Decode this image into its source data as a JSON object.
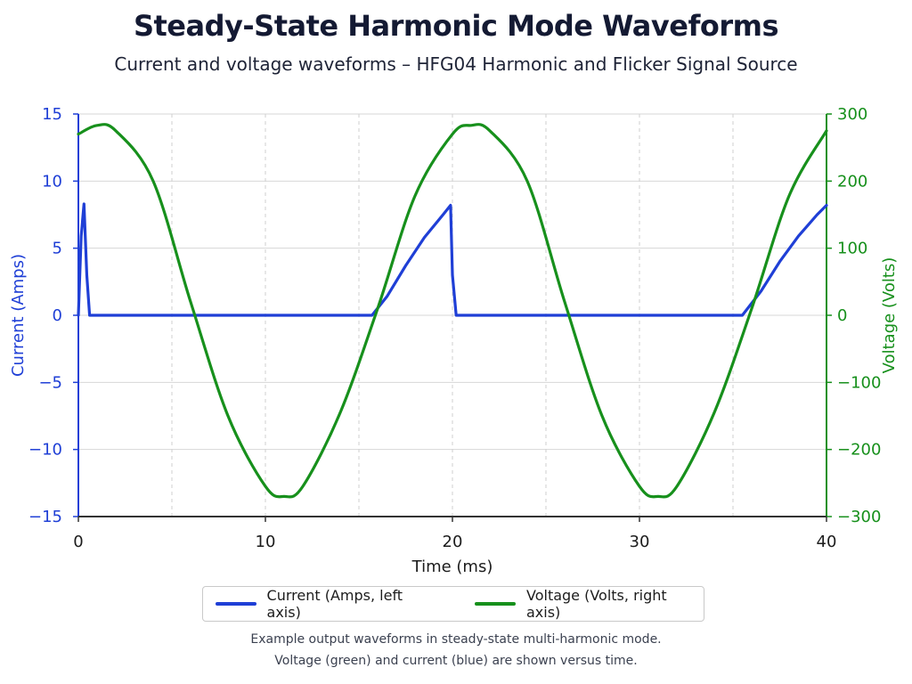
{
  "title": "Steady-State Harmonic Mode Waveforms",
  "subtitle": "Current and voltage waveforms – HFG04 Harmonic and Flicker Signal Source",
  "caption_lines": [
    "Example output waveforms in steady-state multi-harmonic mode.",
    "Voltage (green) and current (blue) are shown versus time."
  ],
  "colors": {
    "current": "#1f3fd6",
    "voltage": "#17901c",
    "grid": "#d7d7d7",
    "vgrid": "#cfcfcf"
  },
  "chart_data": {
    "type": "line",
    "xlabel": "Time (ms)",
    "ylabel_left": "Current (Amps)",
    "ylabel_right": "Voltage (Volts)",
    "xlim": [
      0,
      40
    ],
    "ylim_left": [
      -15,
      15
    ],
    "ylim_right": [
      -300,
      300
    ],
    "x_ticks": [
      "0",
      "10",
      "20",
      "30",
      "40"
    ],
    "y_ticks_left": [
      "15",
      "10",
      "5",
      "0",
      "−5",
      "−10",
      "−15"
    ],
    "y_ticks_right": [
      "300",
      "200",
      "100",
      "0",
      "−100",
      "−200",
      "−300"
    ],
    "grid": true,
    "legend_position": "bottom",
    "series": [
      {
        "name": "Current (Amps, left axis)",
        "axis": "left",
        "x": [
          0,
          0.15,
          0.3,
          0.45,
          0.6,
          15.7,
          16.5,
          17.5,
          18.5,
          19.5,
          19.9,
          20.0,
          20.2,
          20.4,
          35.5,
          36.5,
          37.5,
          38.5,
          39.5,
          40
        ],
        "y": [
          0,
          5.9,
          8.3,
          3.0,
          0,
          0,
          1.4,
          3.7,
          5.8,
          7.5,
          8.2,
          3.0,
          0,
          0,
          0,
          1.8,
          4.0,
          5.9,
          7.5,
          8.2
        ]
      },
      {
        "name": "Voltage (Volts, right axis)",
        "axis": "right",
        "x": [
          0,
          1,
          2,
          4,
          6,
          8,
          10,
          11,
          12,
          14,
          16,
          18,
          20,
          21,
          22,
          24,
          26,
          28,
          30,
          31,
          32,
          34,
          36,
          38,
          40
        ],
        "y": [
          270,
          283,
          275,
          200,
          20,
          -150,
          -255,
          -270,
          -255,
          -145,
          10,
          178,
          270,
          283,
          275,
          200,
          20,
          -150,
          -255,
          -270,
          -255,
          -145,
          10,
          178,
          275
        ]
      }
    ]
  }
}
